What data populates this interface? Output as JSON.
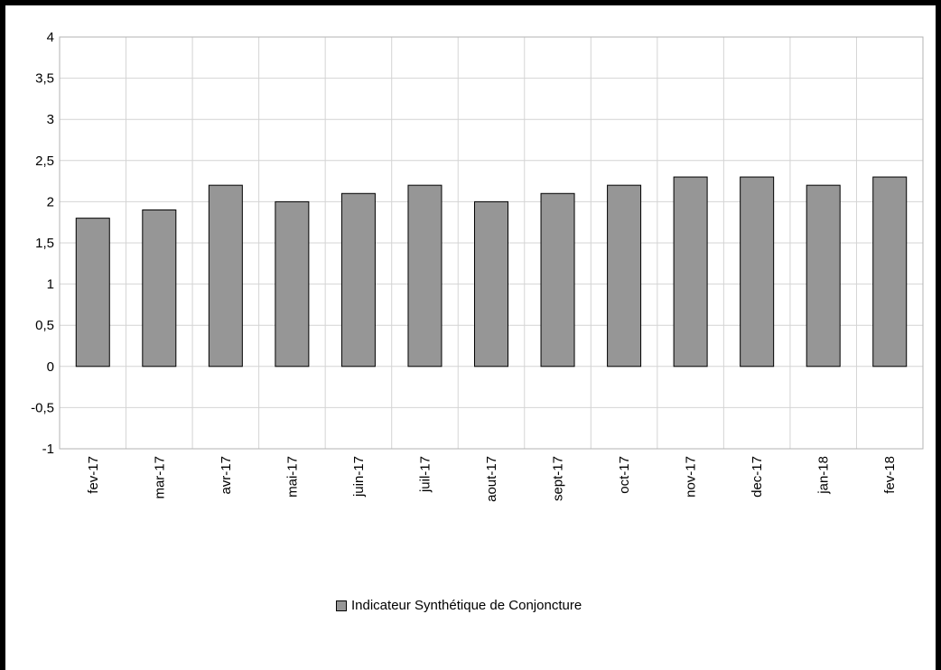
{
  "chart_data": {
    "type": "bar",
    "categories": [
      "fev-17",
      "mar-17",
      "avr-17",
      "mai-17",
      "juin-17",
      "juil-17",
      "aout-17",
      "sept-17",
      "oct-17",
      "nov-17",
      "dec-17",
      "jan-18",
      "fev-18"
    ],
    "series": [
      {
        "name": "Indicateur Synthétique de Conjoncture",
        "values": [
          1.8,
          1.9,
          2.2,
          2.0,
          2.1,
          2.2,
          2.0,
          2.1,
          2.2,
          2.3,
          2.3,
          2.2,
          2.3
        ]
      }
    ],
    "ylim": [
      -1,
      4
    ],
    "yticks": [
      4,
      3.5,
      3,
      2.5,
      2,
      1.5,
      1,
      0.5,
      0,
      -0.5,
      -1
    ],
    "ytick_labels": [
      "4",
      "3,5",
      "3",
      "2,5",
      "2",
      "1,5",
      "1",
      "0,5",
      "0",
      "-0,5",
      "-1"
    ],
    "grid": true,
    "legend_position": "bottom",
    "colors": {
      "bar": "#969696",
      "grid": "#d4d4d4",
      "axis": "#b3b3b3",
      "frame": "#000000"
    }
  }
}
